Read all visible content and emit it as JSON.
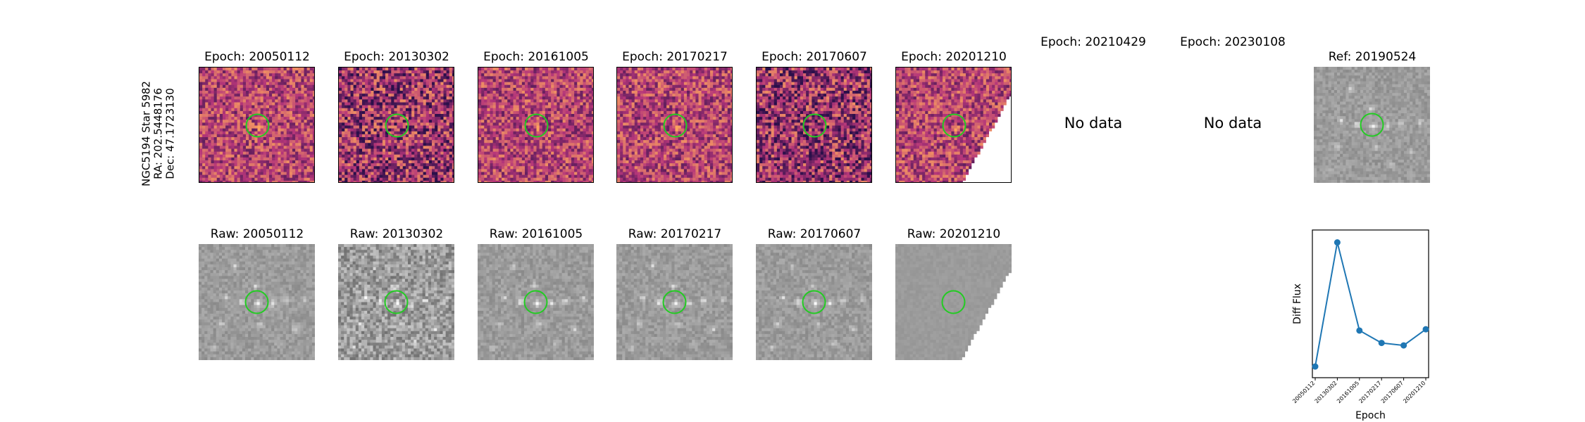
{
  "colors": {
    "circle": "#22cc22",
    "line": "#1f77b4",
    "diff_low": "#2a0f4a",
    "diff_mid": "#b5367a",
    "diff_high": "#fca35e"
  },
  "object": {
    "name_line": "NGC5194 Star 5982",
    "ra_line": "RA: 202.5448176",
    "dec_line": "Dec: 47.1723130"
  },
  "epoch_titles": [
    "Epoch: 20050112",
    "Epoch: 20130302",
    "Epoch: 20161005",
    "Epoch: 20170217",
    "Epoch: 20170607",
    "Epoch: 20201210",
    "Epoch: 20210429",
    "Epoch: 20230108"
  ],
  "no_data_label": "No data",
  "ref_title": "Ref: 20190524",
  "raw_titles": [
    "Raw: 20050112",
    "Raw: 20130302",
    "Raw: 20161005",
    "Raw: 20170217",
    "Raw: 20170607",
    "Raw: 20201210"
  ],
  "chart_data": {
    "type": "line",
    "title": "",
    "xlabel": "Epoch",
    "ylabel": "Diff Flux",
    "categories": [
      "20050112",
      "20130302",
      "20161005",
      "20170217",
      "20170607",
      "20201210"
    ],
    "values": [
      0.0,
      1.0,
      0.29,
      0.19,
      0.17,
      0.3
    ],
    "ylim": [
      -0.09,
      1.1
    ],
    "grid": false,
    "marker": "circle"
  }
}
